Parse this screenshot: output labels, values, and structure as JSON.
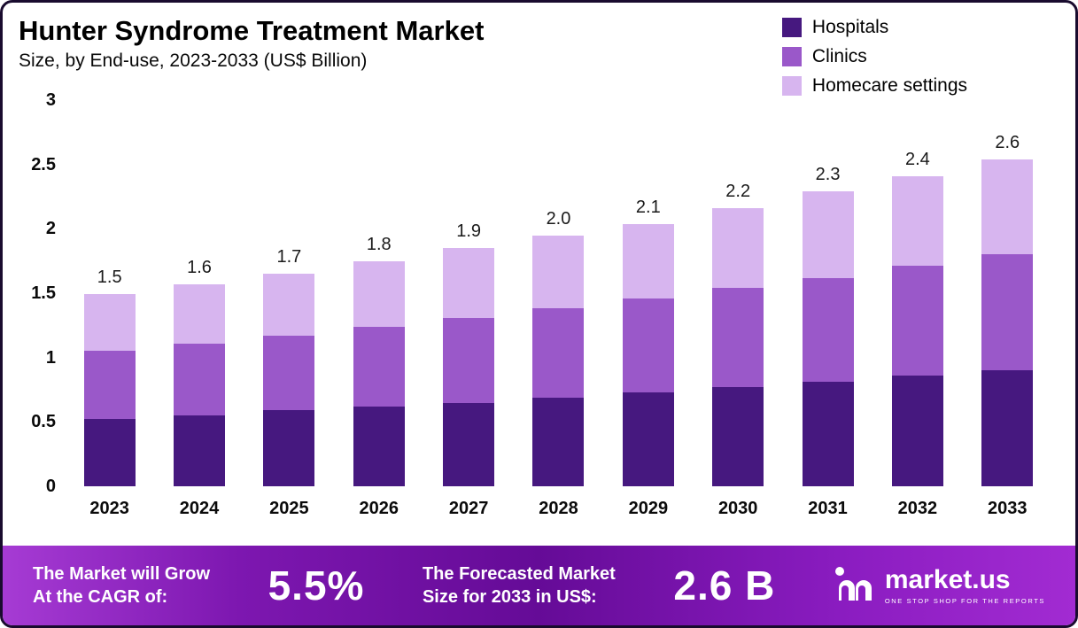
{
  "title": "Hunter Syndrome Treatment Market",
  "subtitle": "Size, by End-use, 2023-2033 (US$ Billion)",
  "legend": {
    "items": [
      {
        "label": "Hospitals",
        "color": "#46187f"
      },
      {
        "label": "Clinics",
        "color": "#9a58c9"
      },
      {
        "label": "Homecare settings",
        "color": "#d7b5ef"
      }
    ]
  },
  "chart_data": {
    "type": "bar",
    "stacked": true,
    "title": "Hunter Syndrome Treatment Market",
    "subtitle": "Size, by End-use, 2023-2033 (US$ Billion)",
    "unit": "US$ Billion",
    "categories": [
      "2023",
      "2024",
      "2025",
      "2026",
      "2027",
      "2028",
      "2029",
      "2030",
      "2031",
      "2032",
      "2033"
    ],
    "series": [
      {
        "name": "Hospitals",
        "color": "#46187f",
        "values": [
          0.52,
          0.55,
          0.59,
          0.62,
          0.65,
          0.69,
          0.73,
          0.77,
          0.81,
          0.86,
          0.9
        ]
      },
      {
        "name": "Clinics",
        "color": "#9a58c9",
        "values": [
          0.53,
          0.56,
          0.58,
          0.62,
          0.66,
          0.69,
          0.73,
          0.77,
          0.81,
          0.85,
          0.9
        ]
      },
      {
        "name": "Homecare settings",
        "color": "#d7b5ef",
        "values": [
          0.44,
          0.46,
          0.48,
          0.51,
          0.54,
          0.57,
          0.58,
          0.62,
          0.67,
          0.7,
          0.74
        ]
      }
    ],
    "totals": [
      1.5,
      1.6,
      1.7,
      1.8,
      1.9,
      2.0,
      2.1,
      2.2,
      2.3,
      2.4,
      2.6
    ],
    "total_labels": [
      "1.5",
      "1.6",
      "1.7",
      "1.8",
      "1.9",
      "2.0",
      "2.1",
      "2.2",
      "2.3",
      "2.4",
      "2.6"
    ],
    "ylim": [
      0,
      3
    ],
    "yticks": [
      3,
      2.5,
      2,
      1.5,
      1,
      0.5,
      0
    ],
    "ytick_labels": [
      "3",
      "2.5",
      "2",
      "1.5",
      "1",
      "0.5",
      "0"
    ],
    "grid": false,
    "legend_position": "top-right"
  },
  "footer": {
    "cagr_line1": "The Market will Grow",
    "cagr_line2": "At the CAGR of:",
    "cagr_value": "5.5%",
    "forecast_line1": "The Forecasted Market",
    "forecast_line2": "Size for 2033 in US$:",
    "forecast_value": "2.6 B",
    "brand": "market.us",
    "brand_tagline": "ONE STOP SHOP FOR THE REPORTS"
  }
}
